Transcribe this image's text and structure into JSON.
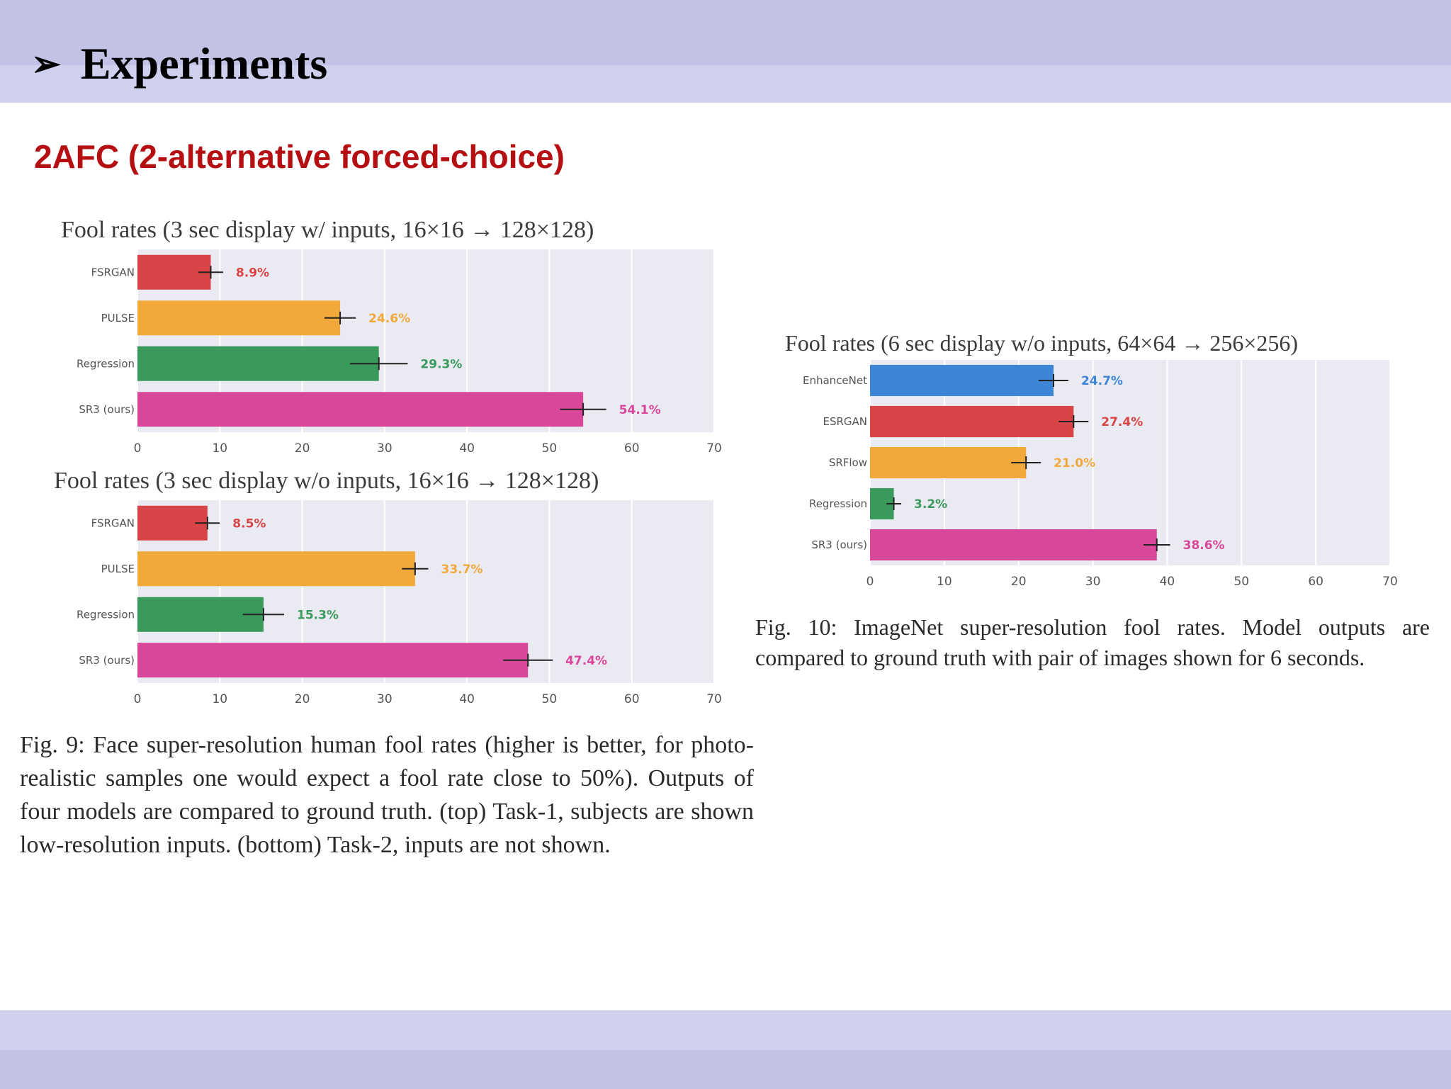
{
  "slide": {
    "title": "Experiments",
    "title_marker": "➢",
    "section_heading": "2AFC (2-alternative forced-choice)"
  },
  "colors": {
    "band_dark": "#c2c2e6",
    "band_light": "#cfcfee",
    "heading_red": "#b50f12",
    "plot_bg": "#eaeaf2",
    "red": "#d94546",
    "orange": "#f2a93b",
    "green": "#3a9a5b",
    "pink": "#d9479b",
    "blue": "#3d85d6"
  },
  "chart_data": [
    {
      "id": "chart1",
      "type": "bar",
      "orientation": "horizontal",
      "title": "Fool rates (3 sec display w/ inputs, 16×16 → 128×128)",
      "categories": [
        "FSRGAN",
        "PULSE",
        "Regression",
        "SR3 (ours)"
      ],
      "values": [
        8.9,
        24.6,
        29.3,
        54.1
      ],
      "labels": [
        "8.9%",
        "24.6%",
        "29.3%",
        "54.1%"
      ],
      "colors": [
        "#d94546",
        "#f2a93b",
        "#3a9a5b",
        "#d9479b"
      ],
      "error": [
        1.5,
        1.9,
        3.5,
        2.8
      ],
      "xlim": [
        0,
        70
      ],
      "xticks": [
        0,
        10,
        20,
        30,
        40,
        50,
        60,
        70
      ],
      "grid": true
    },
    {
      "id": "chart2",
      "type": "bar",
      "orientation": "horizontal",
      "title": "Fool rates (3 sec display w/o inputs, 16×16 → 128×128)",
      "categories": [
        "FSRGAN",
        "PULSE",
        "Regression",
        "SR3 (ours)"
      ],
      "values": [
        8.5,
        33.7,
        15.3,
        47.4
      ],
      "labels": [
        "8.5%",
        "33.7%",
        "15.3%",
        "47.4%"
      ],
      "colors": [
        "#d94546",
        "#f2a93b",
        "#3a9a5b",
        "#d9479b"
      ],
      "error": [
        1.5,
        1.6,
        2.5,
        3.0
      ],
      "xlim": [
        0,
        70
      ],
      "xticks": [
        0,
        10,
        20,
        30,
        40,
        50,
        60,
        70
      ],
      "grid": true
    },
    {
      "id": "chart3",
      "type": "bar",
      "orientation": "horizontal",
      "title": "Fool rates (6 sec display w/o inputs, 64×64 → 256×256)",
      "categories": [
        "EnhanceNet",
        "ESRGAN",
        "SRFlow",
        "Regression",
        "SR3 (ours)"
      ],
      "values": [
        24.7,
        27.4,
        21.0,
        3.2,
        38.6
      ],
      "labels": [
        "24.7%",
        "27.4%",
        "21.0%",
        "3.2%",
        "38.6%"
      ],
      "colors": [
        "#3d85d6",
        "#d94546",
        "#f2a93b",
        "#3a9a5b",
        "#d9479b"
      ],
      "error": [
        2.0,
        2.0,
        2.0,
        1.0,
        1.8
      ],
      "xlim": [
        0,
        70
      ],
      "xticks": [
        0,
        10,
        20,
        30,
        40,
        50,
        60,
        70
      ],
      "grid": true
    }
  ],
  "captions": {
    "fig9": "Fig. 9: Face super-resolution human fool rates (higher is better, for photo-realistic samples one would expect a fool rate close to 50%). Outputs of four models are compared to ground truth. (top) Task-1, subjects are shown low-resolution inputs. (bottom) Task-2, inputs are not shown.",
    "fig10": "Fig. 10: ImageNet super-resolution fool rates. Model outputs are compared to ground truth with pair of images shown for 6 seconds."
  }
}
